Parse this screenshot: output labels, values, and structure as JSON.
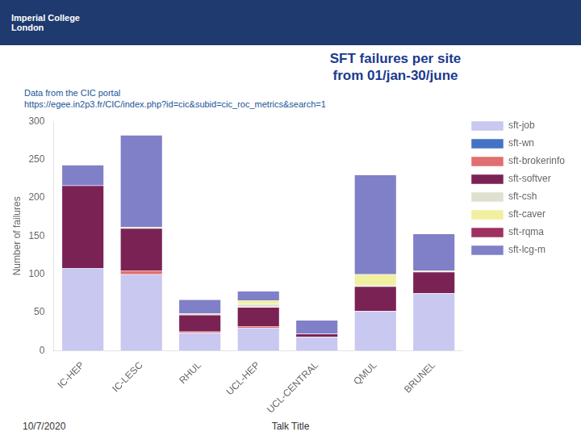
{
  "chart_data": {
    "type": "bar",
    "title": [
      "SFT failures per site",
      "from 01/jan-30/june"
    ],
    "subtitle": [
      "Data from the CIC portal",
      "https://egee.in2p3.fr/CIC/index.php?id=cic&subid=cic_roc_metrics&search=1"
    ],
    "annotations": [
      "Imperial College",
      "London",
      "10/7/2020",
      "Talk Title"
    ],
    "categories": [
      "IC-HEP",
      "IC-LESC",
      "RHUL",
      "UCL-HEP",
      "UCL-CENTRAL",
      "QMUL",
      "BRUNEL"
    ],
    "series": [
      {
        "name": "sft-job",
        "color": "#c8c8f0",
        "values": [
          108,
          100,
          23,
          30,
          18,
          52,
          75
        ]
      },
      {
        "name": "sft-wn",
        "color": "#4472c4",
        "values": [
          0,
          0,
          0,
          0,
          0,
          0,
          0
        ]
      },
      {
        "name": "sft-brokerinfo",
        "color": "#e07070",
        "values": [
          0,
          5,
          2,
          2,
          0,
          0,
          0
        ]
      },
      {
        "name": "sft-softver",
        "color": "#7b2255",
        "values": [
          108,
          55,
          22,
          25,
          4,
          32,
          28
        ]
      },
      {
        "name": "sft-csh",
        "color": "#e0e0d0",
        "values": [
          0,
          2,
          2,
          4,
          0,
          2,
          2
        ]
      },
      {
        "name": "sft-caver",
        "color": "#f0f0a0",
        "values": [
          0,
          0,
          0,
          5,
          0,
          14,
          0
        ]
      },
      {
        "name": "sft-rqma",
        "color": "#a03060",
        "values": [
          0,
          0,
          0,
          0,
          0,
          0,
          0
        ]
      },
      {
        "name": "sft-lcg-m",
        "color": "#8080c8",
        "values": [
          27,
          120,
          18,
          12,
          18,
          130,
          48
        ]
      }
    ],
    "ylabel": "Number of failures",
    "ylim": [
      0,
      300
    ],
    "yticks": [
      0,
      50,
      100,
      150,
      200,
      250,
      300
    ],
    "stacked": true,
    "grid": false,
    "legend": "right"
  }
}
